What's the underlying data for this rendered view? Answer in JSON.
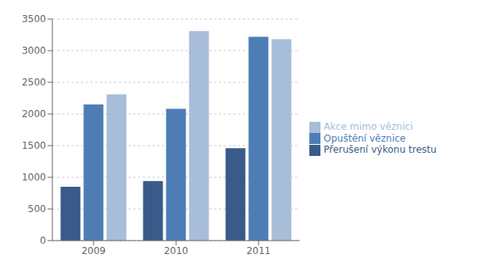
{
  "chart_data": {
    "type": "bar",
    "categories": [
      "2009",
      "2010",
      "2011"
    ],
    "series": [
      {
        "name": "Přerušení výkonu trestu",
        "color": "#3A5B8A",
        "values": [
          850,
          940,
          1460
        ]
      },
      {
        "name": "Opuštění věznice",
        "color": "#4E7DB5",
        "values": [
          2150,
          2080,
          3220
        ]
      },
      {
        "name": "Akce mimo věznici",
        "color": "#A8BDD8",
        "values": [
          2310,
          3310,
          3180
        ]
      }
    ],
    "ylim": [
      0,
      3500
    ],
    "yticks": [
      0,
      500,
      1000,
      1500,
      2000,
      2500,
      3000,
      3500
    ],
    "grid": true,
    "legend": "right"
  }
}
